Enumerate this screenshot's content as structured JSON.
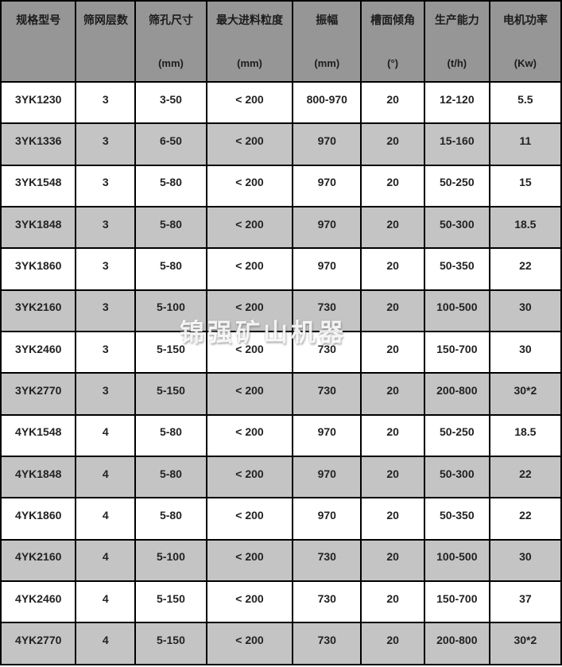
{
  "table": {
    "columns": [
      {
        "label": "规格型号",
        "unit": ""
      },
      {
        "label": "筛网层数",
        "unit": ""
      },
      {
        "label": "筛孔尺寸",
        "unit": "(mm)"
      },
      {
        "label": "最大进料粒度",
        "unit": "(mm)"
      },
      {
        "label": "振幅",
        "unit": "(mm)"
      },
      {
        "label": "槽面倾角",
        "unit": "(°)"
      },
      {
        "label": "生产能力",
        "unit": "(t/h)"
      },
      {
        "label": "电机功率",
        "unit": "(Kw)"
      }
    ],
    "rows": [
      [
        "3YK1230",
        "3",
        "3-50",
        "< 200",
        "800-970",
        "20",
        "12-120",
        "5.5"
      ],
      [
        "3YK1336",
        "3",
        "6-50",
        "< 200",
        "970",
        "20",
        "15-160",
        "11"
      ],
      [
        "3YK1548",
        "3",
        "5-80",
        "< 200",
        "970",
        "20",
        "50-250",
        "15"
      ],
      [
        "3YK1848",
        "3",
        "5-80",
        "< 200",
        "970",
        "20",
        "50-300",
        "18.5"
      ],
      [
        "3YK1860",
        "3",
        "5-80",
        "< 200",
        "970",
        "20",
        "50-350",
        "22"
      ],
      [
        "3YK2160",
        "3",
        "5-100",
        "< 200",
        "730",
        "20",
        "100-500",
        "30"
      ],
      [
        "3YK2460",
        "3",
        "5-150",
        "< 200",
        "730",
        "20",
        "150-700",
        "30"
      ],
      [
        "3YK2770",
        "3",
        "5-150",
        "< 200",
        "730",
        "20",
        "200-800",
        "30*2"
      ],
      [
        "4YK1548",
        "4",
        "5-80",
        "< 200",
        "970",
        "20",
        "50-250",
        "18.5"
      ],
      [
        "4YK1848",
        "4",
        "5-80",
        "< 200",
        "970",
        "20",
        "50-300",
        "22"
      ],
      [
        "4YK1860",
        "4",
        "5-80",
        "< 200",
        "970",
        "20",
        "50-350",
        "22"
      ],
      [
        "4YK2160",
        "4",
        "5-100",
        "< 200",
        "730",
        "20",
        "100-500",
        "30"
      ],
      [
        "4YK2460",
        "4",
        "5-150",
        "< 200",
        "730",
        "20",
        "150-700",
        "37"
      ],
      [
        "4YK2770",
        "4",
        "5-150",
        "< 200",
        "730",
        "20",
        "200-800",
        "30*2"
      ]
    ]
  },
  "watermark": {
    "text": "锦强矿山机器"
  },
  "colors": {
    "header_bg": "#969696",
    "row_alt_bg": "#c4c4c4",
    "border": "#000000",
    "header_text": "#1c1c1c",
    "cell_text": "#222222"
  }
}
